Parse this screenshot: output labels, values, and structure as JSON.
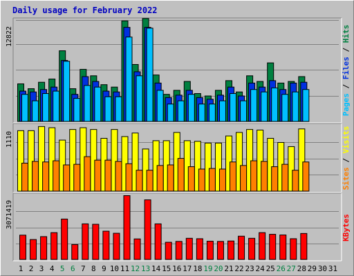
{
  "title": "Daily usage for February 2022",
  "chart_data": [
    {
      "type": "bar",
      "ylabel_parts": [
        "Pages",
        "Files",
        "Hits"
      ],
      "max_label": "12822",
      "ylim": [
        0,
        12822
      ],
      "colors": {
        "Pages": "#00c0ff",
        "Files": "#0030e0",
        "Hits": "#008040"
      },
      "categories": [
        "1",
        "2",
        "3",
        "4",
        "5",
        "6",
        "7",
        "8",
        "9",
        "10",
        "11",
        "12",
        "13",
        "14",
        "15",
        "16",
        "17",
        "18",
        "19",
        "20",
        "21",
        "22",
        "23",
        "24",
        "25",
        "26",
        "27",
        "28",
        "29",
        "30",
        "31"
      ],
      "series": [
        {
          "name": "Hits",
          "values": [
            4700,
            4100,
            4900,
            5300,
            8800,
            4100,
            6500,
            5700,
            4600,
            4300,
            12500,
            7100,
            12800,
            5800,
            3400,
            3900,
            5000,
            3500,
            3200,
            3900,
            5100,
            3700,
            5700,
            5000,
            7300,
            4800,
            5000,
            5600,
            0,
            0,
            0
          ]
        },
        {
          "name": "Files",
          "values": [
            3800,
            3700,
            4000,
            4300,
            7600,
            3400,
            5600,
            5000,
            3800,
            3700,
            11700,
            6200,
            11700,
            4800,
            3000,
            3300,
            3900,
            3000,
            2800,
            3300,
            4300,
            3200,
            4800,
            4300,
            5100,
            4000,
            4800,
            4900,
            0,
            0,
            0
          ]
        },
        {
          "name": "Pages",
          "values": [
            3400,
            2600,
            3500,
            3800,
            7500,
            2900,
            4500,
            4300,
            3100,
            3100,
            10500,
            5700,
            11600,
            3900,
            2200,
            2600,
            3400,
            2200,
            2200,
            2600,
            3500,
            2600,
            4000,
            3700,
            4200,
            3400,
            3700,
            4000,
            0,
            0,
            0
          ]
        }
      ]
    },
    {
      "type": "bar",
      "ylabel_parts": [
        "Sites",
        "Visits"
      ],
      "max_label": "1110",
      "ylim": [
        0,
        1110
      ],
      "colors": {
        "Visits": "#ffff00",
        "Sites": "#ff8000"
      },
      "categories": [
        "1",
        "2",
        "3",
        "4",
        "5",
        "6",
        "7",
        "8",
        "9",
        "10",
        "11",
        "12",
        "13",
        "14",
        "15",
        "16",
        "17",
        "18",
        "19",
        "20",
        "21",
        "22",
        "23",
        "24",
        "25",
        "26",
        "27",
        "28",
        "29",
        "30",
        "31"
      ],
      "series": [
        {
          "name": "Visits",
          "values": [
            1030,
            1030,
            1100,
            1080,
            870,
            1050,
            1080,
            1050,
            900,
            1050,
            930,
            990,
            720,
            860,
            860,
            1000,
            860,
            850,
            820,
            820,
            940,
            1000,
            1050,
            1040,
            900,
            830,
            760,
            1060,
            0,
            0,
            0
          ]
        },
        {
          "name": "Sites",
          "values": [
            480,
            510,
            500,
            520,
            450,
            460,
            590,
            530,
            530,
            510,
            470,
            360,
            360,
            440,
            450,
            560,
            420,
            380,
            390,
            380,
            500,
            440,
            520,
            510,
            420,
            460,
            360,
            500,
            0,
            0,
            0
          ]
        }
      ]
    },
    {
      "type": "bar",
      "ylabel_parts": [
        "KBytes"
      ],
      "max_label": "3071419",
      "ylim": [
        0,
        3071419
      ],
      "colors": {
        "KBytes": "#ff0000"
      },
      "categories": [
        "1",
        "2",
        "3",
        "4",
        "5",
        "6",
        "7",
        "8",
        "9",
        "10",
        "11",
        "12",
        "13",
        "14",
        "15",
        "16",
        "17",
        "18",
        "19",
        "20",
        "21",
        "22",
        "23",
        "24",
        "25",
        "26",
        "27",
        "28",
        "29",
        "30",
        "31"
      ],
      "series": [
        {
          "name": "KBytes",
          "values": [
            1180000,
            970000,
            1110000,
            1300000,
            1950000,
            730000,
            1720000,
            1700000,
            1370000,
            1270000,
            3071419,
            1000000,
            2870000,
            1720000,
            840000,
            880000,
            1030000,
            1010000,
            890000,
            880000,
            900000,
            1130000,
            1030000,
            1300000,
            1220000,
            1190000,
            1010000,
            1260000,
            0,
            0,
            0
          ]
        }
      ]
    }
  ],
  "weekend_days": [
    5,
    6,
    12,
    13,
    19,
    20,
    26,
    27
  ],
  "colors": {
    "title": "#0000c0",
    "weekday_label": "#000000",
    "weekend_label": "#008040",
    "panel_bg": "#c0c0c0",
    "gridline": "#808080",
    "bar_outline": "#000000"
  }
}
